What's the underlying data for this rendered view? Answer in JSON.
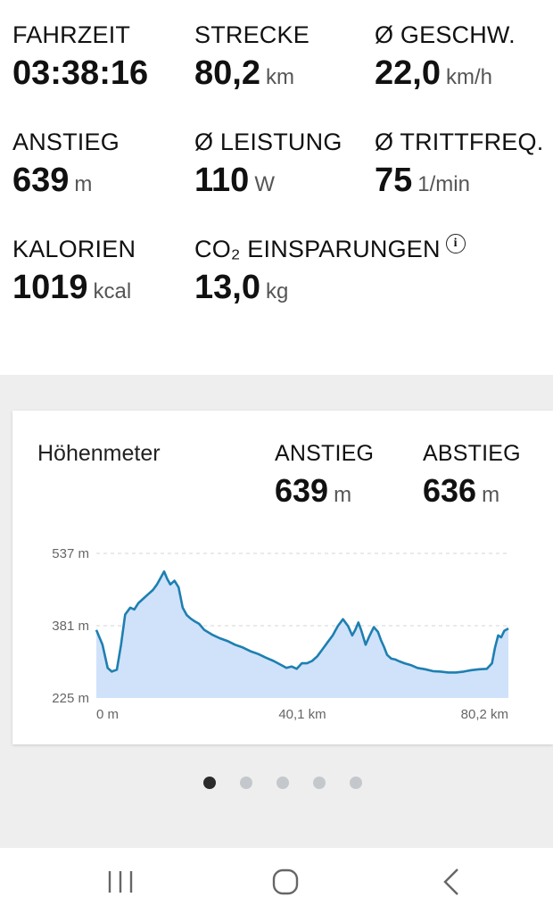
{
  "stats": [
    {
      "label": "FAHRZEIT",
      "value": "03:38:16",
      "unit": ""
    },
    {
      "label": "STRECKE",
      "value": "80,2",
      "unit": "km"
    },
    {
      "label": "Ø GESCHW.",
      "value": "22,0",
      "unit": "km/h"
    },
    {
      "label": "ANSTIEG",
      "value": "639",
      "unit": "m"
    },
    {
      "label": "Ø LEISTUNG",
      "value": "110",
      "unit": "W"
    },
    {
      "label": "Ø TRITTFREQ.",
      "value": "75",
      "unit": "1/min"
    },
    {
      "label": "KALORIEN",
      "value": "1019",
      "unit": "kcal"
    },
    {
      "label": "CO₂ EINSPARUNGEN",
      "value": "13,0",
      "unit": "kg",
      "info_icon": "info-icon"
    }
  ],
  "elevation_card": {
    "title": "Höhenmeter",
    "ascent": {
      "label": "ANSTIEG",
      "value": "639",
      "unit": "m"
    },
    "descent": {
      "label": "ABSTIEG",
      "value": "636",
      "unit": "m"
    }
  },
  "chart_data": {
    "type": "area",
    "title": "",
    "xlabel": "",
    "ylabel": "",
    "x_unit": "km",
    "y_unit": "m",
    "xlim": [
      0,
      80.2
    ],
    "ylim": [
      225,
      537
    ],
    "y_ticks": [
      "537 m",
      "381 m",
      "225 m"
    ],
    "y_tick_values": [
      537,
      381,
      225
    ],
    "x_ticks": [
      "0 m",
      "40,1 km",
      "80,2 km"
    ],
    "x_tick_values": [
      0,
      40.1,
      80.2
    ],
    "grid": true,
    "line_color": "#1e7fb0",
    "fill_color": "#cfe2fa",
    "x": [
      0,
      1.2,
      2.2,
      3.0,
      4.0,
      4.8,
      5.6,
      6.6,
      7.4,
      8.2,
      9.2,
      10.0,
      11.0,
      11.8,
      12.6,
      13.2,
      13.8,
      14.4,
      15.2,
      16.0,
      16.8,
      17.6,
      18.4,
      19.2,
      20.0,
      21.0,
      22.5,
      24.0,
      25.5,
      27.0,
      28.5,
      30.0,
      31.5,
      33.0,
      34.5,
      36.0,
      37.0,
      38.0,
      39.0,
      40.0,
      41.0,
      42.0,
      43.0,
      44.0,
      45.0,
      46.0,
      47.0,
      48.0,
      49.0,
      49.8,
      50.4,
      51.0,
      51.6,
      52.4,
      53.2,
      54.0,
      54.8,
      55.4,
      56.0,
      56.6,
      57.4,
      58.2,
      59.0,
      60.0,
      61.2,
      62.5,
      64.0,
      65.5,
      67.0,
      68.5,
      70.0,
      71.5,
      73.0,
      74.5,
      76.0,
      77.0,
      77.6,
      78.2,
      78.8,
      79.4,
      80.2
    ],
    "y": [
      372,
      340,
      290,
      282,
      286,
      340,
      405,
      420,
      416,
      430,
      440,
      448,
      458,
      470,
      486,
      498,
      482,
      470,
      478,
      464,
      420,
      404,
      396,
      390,
      385,
      372,
      362,
      354,
      348,
      340,
      334,
      326,
      320,
      312,
      305,
      296,
      290,
      293,
      288,
      300,
      300,
      305,
      315,
      330,
      345,
      360,
      380,
      395,
      380,
      360,
      372,
      388,
      370,
      340,
      360,
      378,
      368,
      350,
      335,
      318,
      310,
      308,
      304,
      300,
      296,
      290,
      287,
      283,
      282,
      280,
      280,
      282,
      285,
      287,
      288,
      300,
      334,
      360,
      356,
      370,
      375
    ]
  },
  "pager": {
    "count": 5,
    "active": 0
  },
  "nav": {
    "icons": [
      "recent-apps-icon",
      "home-icon",
      "back-icon"
    ]
  }
}
